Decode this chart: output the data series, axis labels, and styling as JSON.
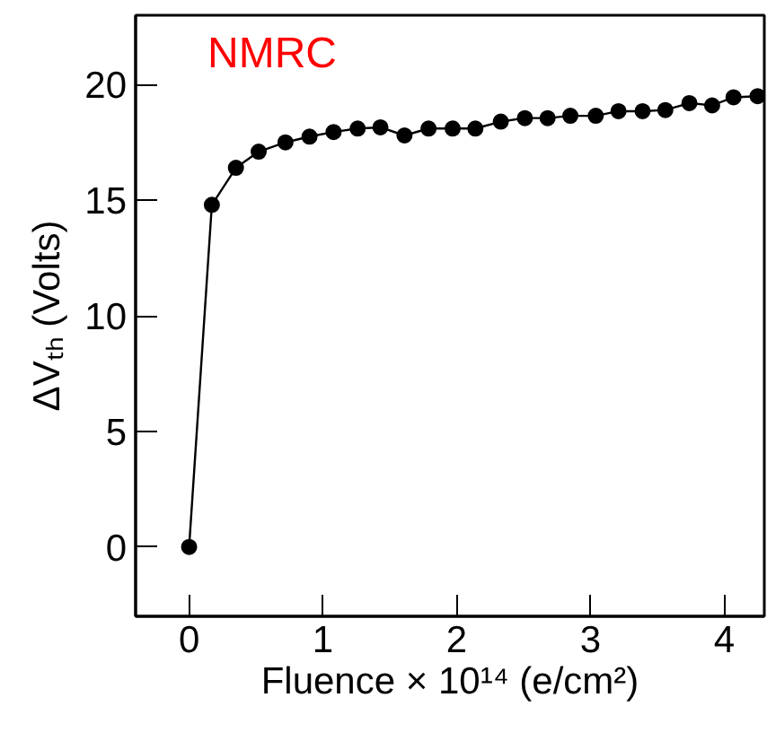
{
  "chart_data": {
    "type": "line",
    "xlabel": "Fluence × 10¹⁴ (e/cm²)",
    "ylabel": "ΔVₜₕ (Volts)",
    "annotations": [
      "NMRC"
    ],
    "x": [
      0,
      0.17,
      0.35,
      0.52,
      0.72,
      0.9,
      1.08,
      1.26,
      1.43,
      1.61,
      1.79,
      1.97,
      2.14,
      2.33,
      2.51,
      2.68,
      2.85,
      3.04,
      3.21,
      3.39,
      3.56,
      3.74,
      3.91,
      4.07,
      4.25
    ],
    "series": [
      {
        "color": "#000000",
        "values": [
          0,
          14.8,
          16.4,
          17.1,
          17.5,
          17.75,
          17.95,
          18.1,
          18.15,
          17.8,
          18.1,
          18.1,
          18.1,
          18.4,
          18.55,
          18.55,
          18.65,
          18.65,
          18.85,
          18.85,
          18.9,
          19.2,
          19.1,
          19.45,
          19.5
        ]
      }
    ],
    "xlim": [
      -0.4,
      4.3
    ],
    "ylim": [
      -3,
      23
    ],
    "xticks": [
      0,
      1,
      2,
      3,
      4
    ],
    "yticks": [
      0,
      5,
      10,
      15,
      20
    ],
    "grid": false,
    "marker": "circle",
    "line_style": "solid"
  }
}
